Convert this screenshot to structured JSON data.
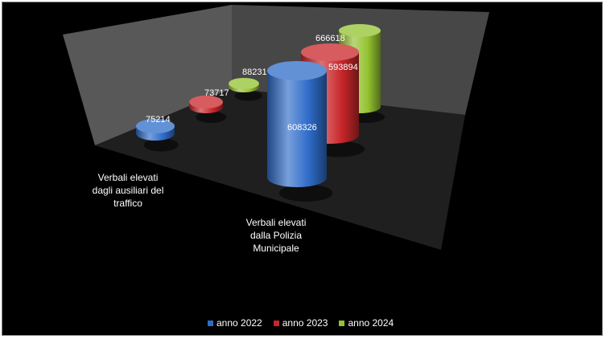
{
  "chart_data": {
    "type": "bar",
    "style": "3d-cylinder",
    "categories": [
      "Verbali elevati dagli ausiliari del traffico",
      "Verbali elevati dalla Polizia Municipale"
    ],
    "category_lines": [
      [
        "Verbali elevati",
        "dagli ausiliari del",
        "traffico"
      ],
      [
        "Verbali elevati",
        "dalla Polizia",
        "Municipale"
      ]
    ],
    "series": [
      {
        "name": "anno 2022",
        "values": [
          75214,
          608326
        ],
        "color": "#2e6cc8"
      },
      {
        "name": "anno 2023",
        "values": [
          73717,
          593894
        ],
        "color": "#c8262a"
      },
      {
        "name": "anno 2024",
        "values": [
          88231,
          666618
        ],
        "color": "#93c230"
      }
    ],
    "legend_position": "bottom",
    "grid": false,
    "background": "#000000",
    "wall_color": "#4a4a4a"
  }
}
